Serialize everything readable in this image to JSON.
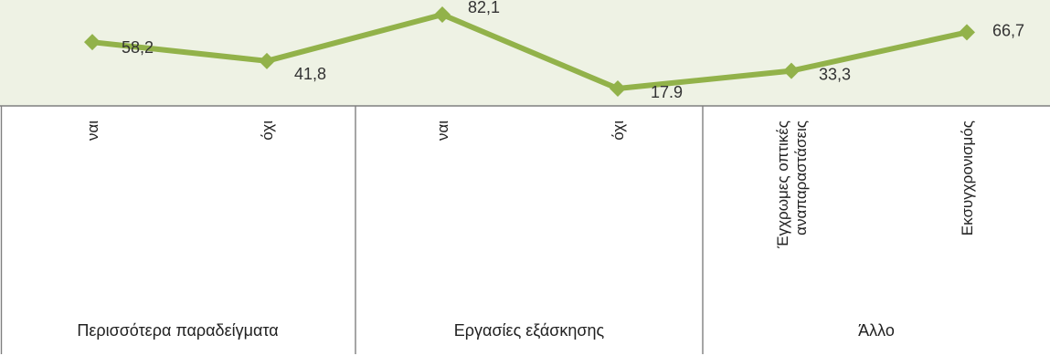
{
  "chart_data": {
    "type": "line",
    "categories": [
      "ναι",
      "όχι",
      "ναι",
      "όχι",
      "Έγχρωμες οπτικές αναπαραστάσεις",
      "Εκσυγχρονισμός"
    ],
    "category_lines": [
      [
        "ναι"
      ],
      [
        "όχι"
      ],
      [
        "ναι"
      ],
      [
        "όχι"
      ],
      [
        "Έγχρωμες οπτικές",
        "αναπαραστάσεις"
      ],
      [
        "Εκσυγχρονισμός"
      ]
    ],
    "groups": [
      {
        "label": "Περισσότερα παραδείγματα",
        "categories": [
          0,
          1
        ]
      },
      {
        "label": "Εργασίες εξάσκησης",
        "categories": [
          2,
          3
        ]
      },
      {
        "label": "Άλλο",
        "categories": [
          4,
          5
        ]
      }
    ],
    "series": [
      {
        "values": [
          58.2,
          41.8,
          82.1,
          17.9,
          33.3,
          66.7
        ]
      }
    ],
    "data_labels": [
      "58,2",
      "41,8",
      "82,1",
      "17.9",
      "33,3",
      "66,7"
    ],
    "ylim": [
      10,
      90
    ],
    "colors": {
      "line": "#92b24a",
      "plot_bg": "#eef2e4",
      "border": "#7f7f7f"
    }
  }
}
